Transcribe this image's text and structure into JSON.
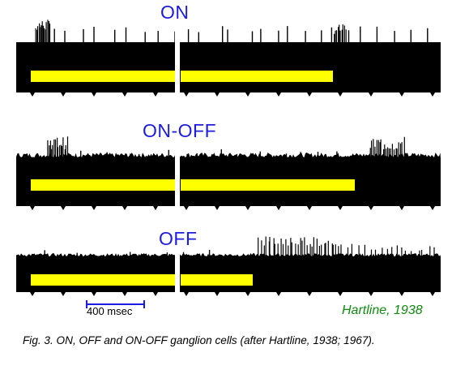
{
  "traces": [
    {
      "id": "on",
      "label": "ON"
    },
    {
      "id": "onoff",
      "label": "ON-OFF"
    },
    {
      "id": "off",
      "label": "OFF"
    }
  ],
  "scale_bar": {
    "label": "400 msec",
    "duration_ms": 400
  },
  "credit": "Hartline, 1938",
  "caption": "Fig. 3. ON, OFF and ON-OFF ganglion cells (after Hartline, 1938; 1967).",
  "colors": {
    "trace": "#000000",
    "stimulus_bar": "#ffff00",
    "label": "#1c1ce0",
    "credit": "#108a10"
  }
}
